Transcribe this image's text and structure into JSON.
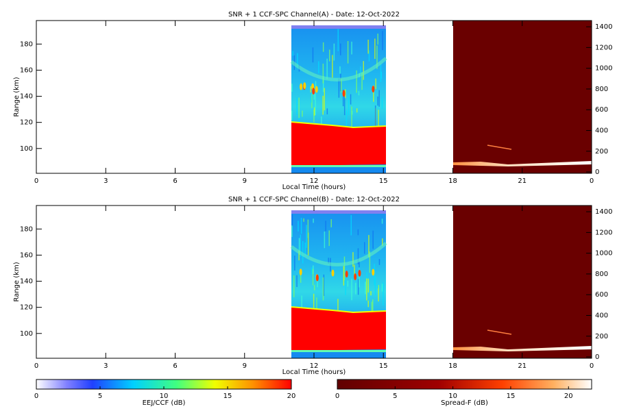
{
  "chart_data": [
    {
      "type": "heatmap",
      "title": "SNR + 1 CCF-SPC Channel(A) - Date: 12-Oct-2022",
      "x_label": "Local Time (hours)",
      "y_label": "Range (km)",
      "xlim": [
        0,
        24
      ],
      "xticks": [
        0,
        3,
        6,
        9,
        12,
        15,
        18,
        21,
        {
          "value": 24,
          "label": "0"
        }
      ],
      "ylim": [
        81,
        198
      ],
      "yticks": [
        100,
        120,
        140,
        160,
        180
      ],
      "y2lim": [
        -13,
        1460
      ],
      "y2ticks": [
        0,
        200,
        400,
        600,
        800,
        1000,
        1200,
        1400
      ]
    },
    {
      "type": "heatmap",
      "title": "SNR + 1 CCF-SPC Channel(B) - Date: 12-Oct-2022",
      "x_label": "Local Time (hours)",
      "y_label": "Range (km)",
      "xlim": [
        0,
        24
      ],
      "xticks": [
        0,
        3,
        6,
        9,
        12,
        15,
        18,
        21,
        {
          "value": 24,
          "label": "0"
        }
      ],
      "ylim": [
        81,
        198
      ],
      "yticks": [
        100,
        120,
        140,
        160,
        180
      ],
      "y2lim": [
        -13,
        1460
      ],
      "y2ticks": [
        0,
        200,
        400,
        600,
        800,
        1000,
        1200,
        1400
      ]
    }
  ],
  "colorbars": [
    {
      "label": "EEJ/CCF (dB)",
      "lim": [
        0,
        20
      ],
      "ticks": [
        0,
        5,
        10,
        15,
        20
      ]
    },
    {
      "label": "Spread-F (dB)",
      "lim": [
        0,
        22
      ],
      "ticks": [
        0,
        5,
        10,
        15,
        20
      ]
    }
  ]
}
